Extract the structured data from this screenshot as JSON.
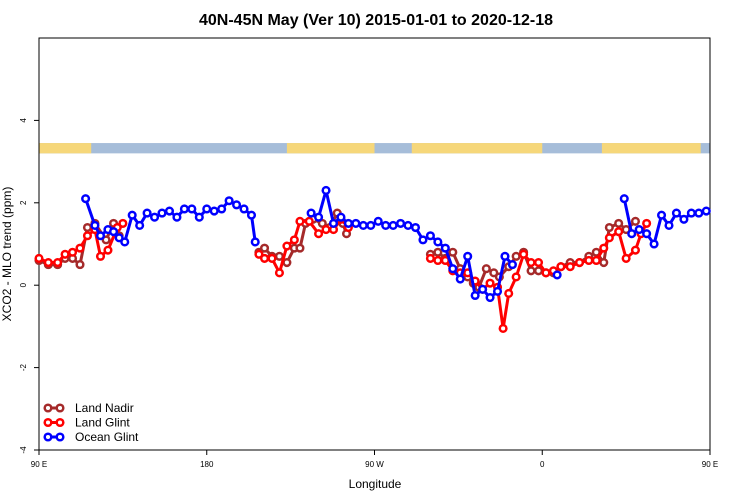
{
  "chart_data": {
    "type": "line",
    "title": "40N-45N May (Ver 10)   2015-01-01 to 2020-12-18",
    "xlabel": "Longitude",
    "ylabel": "XCO2 - MLO trend (ppm)",
    "xlim": [
      0,
      360
    ],
    "ylim": [
      -4,
      6
    ],
    "xticks": [
      {
        "value": 0,
        "label": "90 E"
      },
      {
        "value": 90,
        "label": "180"
      },
      {
        "value": 180,
        "label": "90 W"
      },
      {
        "value": 270,
        "label": "0"
      },
      {
        "value": 360,
        "label": "90 E"
      },
      {
        "value": 450,
        "label": "180"
      }
    ],
    "yticks": [
      {
        "value": -4,
        "label": "-4"
      },
      {
        "value": -2,
        "label": "-2"
      },
      {
        "value": 0,
        "label": "0"
      },
      {
        "value": 2,
        "label": "2"
      },
      {
        "value": 4,
        "label": "4"
      }
    ],
    "grid": false,
    "legend_position": "bottom-left",
    "land_ocean_band": {
      "y_range": [
        3.2,
        3.45
      ],
      "land_color": "#f6d77a",
      "ocean_color": "#a6bdd9",
      "land_segments": [
        [
          0,
          28
        ],
        [
          133,
          180
        ],
        [
          200,
          270
        ],
        [
          302,
          355
        ],
        [
          410,
          432
        ]
      ]
    },
    "series": [
      {
        "name": "Land Nadir",
        "color": "#a52a2a",
        "points": [
          [
            0,
            0.6
          ],
          [
            5,
            0.5
          ],
          [
            10,
            0.5
          ],
          [
            14,
            0.65
          ],
          [
            18,
            0.65
          ],
          [
            22,
            0.5
          ],
          [
            26,
            1.4
          ],
          [
            30,
            1.5
          ],
          [
            36,
            1.1
          ],
          [
            40,
            1.5
          ],
          [
            43,
            1.2
          ],
          [
            118,
            0.8
          ],
          [
            121,
            0.9
          ],
          [
            125,
            0.7
          ],
          [
            129,
            0.7
          ],
          [
            133,
            0.55
          ],
          [
            137,
            0.9
          ],
          [
            140,
            0.9
          ],
          [
            143,
            1.5
          ],
          [
            147,
            1.6
          ],
          [
            152,
            1.5
          ],
          [
            156,
            1.4
          ],
          [
            160,
            1.75
          ],
          [
            163,
            1.5
          ],
          [
            165,
            1.25
          ],
          [
            210,
            0.75
          ],
          [
            214,
            0.8
          ],
          [
            218,
            0.65
          ],
          [
            222,
            0.8
          ],
          [
            226,
            0.4
          ],
          [
            230,
            0.2
          ],
          [
            233,
            0.05
          ],
          [
            236,
            -0.05
          ],
          [
            240,
            0.4
          ],
          [
            244,
            0.3
          ],
          [
            247,
            0.2
          ],
          [
            252,
            0.45
          ],
          [
            256,
            0.7
          ],
          [
            260,
            0.8
          ],
          [
            264,
            0.35
          ],
          [
            268,
            0.35
          ],
          [
            272,
            0.3
          ],
          [
            276,
            0.3
          ],
          [
            280,
            0.45
          ],
          [
            285,
            0.55
          ],
          [
            290,
            0.55
          ],
          [
            295,
            0.7
          ],
          [
            299,
            0.8
          ],
          [
            303,
            0.55
          ],
          [
            306,
            1.4
          ],
          [
            311,
            1.5
          ],
          [
            315,
            1.35
          ],
          [
            320,
            1.55
          ]
        ]
      },
      {
        "name": "Land Glint",
        "color": "#ff0000",
        "points": [
          [
            0,
            0.65
          ],
          [
            5,
            0.55
          ],
          [
            10,
            0.55
          ],
          [
            14,
            0.75
          ],
          [
            18,
            0.8
          ],
          [
            22,
            0.9
          ],
          [
            26,
            1.2
          ],
          [
            30,
            1.35
          ],
          [
            33,
            0.7
          ],
          [
            37,
            0.85
          ],
          [
            42,
            1.4
          ],
          [
            45,
            1.5
          ],
          [
            118,
            0.75
          ],
          [
            121,
            0.65
          ],
          [
            125,
            0.65
          ],
          [
            129,
            0.3
          ],
          [
            133,
            0.95
          ],
          [
            137,
            1.1
          ],
          [
            140,
            1.55
          ],
          [
            145,
            1.55
          ],
          [
            150,
            1.25
          ],
          [
            154,
            1.35
          ],
          [
            158,
            1.35
          ],
          [
            162,
            1.6
          ],
          [
            166,
            1.4
          ],
          [
            210,
            0.65
          ],
          [
            214,
            0.6
          ],
          [
            218,
            0.6
          ],
          [
            222,
            0.35
          ],
          [
            226,
            0.3
          ],
          [
            230,
            0.3
          ],
          [
            234,
            0.1
          ],
          [
            238,
            -0.1
          ],
          [
            242,
            0.05
          ],
          [
            246,
            -0.05
          ],
          [
            249,
            -1.05
          ],
          [
            252,
            -0.2
          ],
          [
            256,
            0.2
          ],
          [
            260,
            0.75
          ],
          [
            264,
            0.55
          ],
          [
            268,
            0.55
          ],
          [
            272,
            0.3
          ],
          [
            276,
            0.35
          ],
          [
            280,
            0.45
          ],
          [
            285,
            0.45
          ],
          [
            290,
            0.55
          ],
          [
            295,
            0.6
          ],
          [
            299,
            0.6
          ],
          [
            303,
            0.9
          ],
          [
            306,
            1.15
          ],
          [
            311,
            1.3
          ],
          [
            315,
            0.65
          ],
          [
            320,
            0.85
          ],
          [
            323,
            1.25
          ],
          [
            326,
            1.5
          ]
        ]
      },
      {
        "name": "Ocean Glint",
        "color": "#0000ff",
        "points": [
          [
            25,
            2.1
          ],
          [
            30,
            1.45
          ],
          [
            33,
            1.2
          ],
          [
            37,
            1.35
          ],
          [
            40,
            1.3
          ],
          [
            43,
            1.15
          ],
          [
            46,
            1.05
          ],
          [
            50,
            1.7
          ],
          [
            54,
            1.45
          ],
          [
            58,
            1.75
          ],
          [
            62,
            1.65
          ],
          [
            66,
            1.75
          ],
          [
            70,
            1.8
          ],
          [
            74,
            1.65
          ],
          [
            78,
            1.85
          ],
          [
            82,
            1.85
          ],
          [
            86,
            1.65
          ],
          [
            90,
            1.85
          ],
          [
            94,
            1.8
          ],
          [
            98,
            1.85
          ],
          [
            102,
            2.05
          ],
          [
            106,
            1.95
          ],
          [
            110,
            1.85
          ],
          [
            114,
            1.7
          ],
          [
            116,
            1.05
          ],
          [
            146,
            1.75
          ],
          [
            150,
            1.65
          ],
          [
            154,
            2.3
          ],
          [
            158,
            1.5
          ],
          [
            162,
            1.65
          ],
          [
            166,
            1.5
          ],
          [
            170,
            1.5
          ],
          [
            174,
            1.45
          ],
          [
            178,
            1.45
          ],
          [
            182,
            1.55
          ],
          [
            186,
            1.45
          ],
          [
            190,
            1.45
          ],
          [
            194,
            1.5
          ],
          [
            198,
            1.45
          ],
          [
            202,
            1.4
          ],
          [
            206,
            1.1
          ],
          [
            210,
            1.2
          ],
          [
            214,
            1.05
          ],
          [
            218,
            0.9
          ],
          [
            222,
            0.4
          ],
          [
            226,
            0.15
          ],
          [
            230,
            0.7
          ],
          [
            234,
            -0.25
          ],
          [
            238,
            -0.1
          ],
          [
            242,
            -0.3
          ],
          [
            246,
            -0.15
          ],
          [
            250,
            0.7
          ],
          [
            254,
            0.5
          ],
          [
            278,
            0.25
          ],
          [
            314,
            2.1
          ],
          [
            318,
            1.25
          ],
          [
            322,
            1.35
          ],
          [
            326,
            1.25
          ],
          [
            330,
            1.0
          ],
          [
            334,
            1.7
          ],
          [
            338,
            1.45
          ],
          [
            342,
            1.75
          ],
          [
            346,
            1.6
          ],
          [
            350,
            1.75
          ],
          [
            354,
            1.75
          ],
          [
            358,
            1.8
          ]
        ]
      }
    ]
  }
}
